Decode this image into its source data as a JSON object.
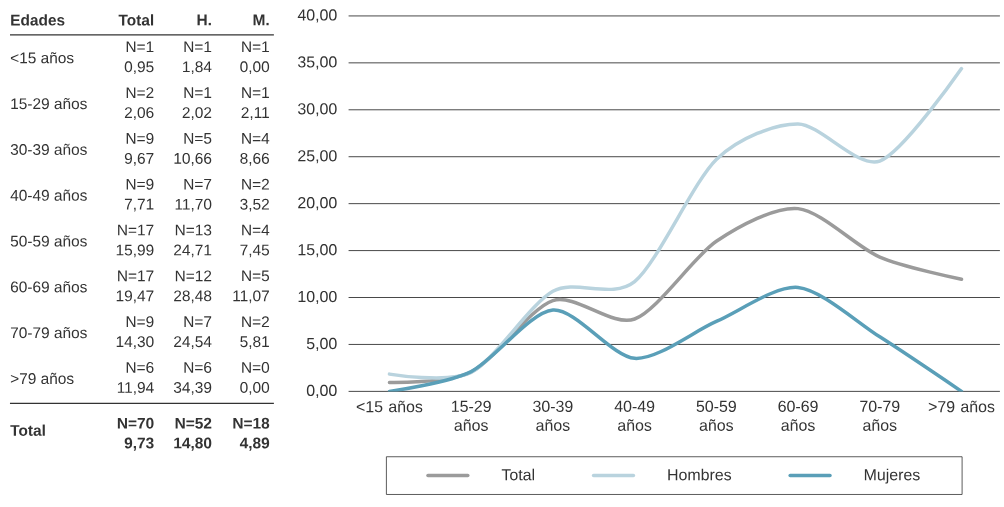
{
  "chart_data": {
    "type": "line",
    "categories": [
      "<15 años",
      "15-29 años",
      "30-39 años",
      "40-49 años",
      "50-59 años",
      "60-69 años",
      "70-79 años",
      ">79 años"
    ],
    "series": [
      {
        "name": "Total",
        "color": "#9b9b9b",
        "values": [
          0.95,
          2.06,
          9.67,
          7.71,
          15.99,
          19.47,
          14.3,
          11.94
        ]
      },
      {
        "name": "Hombres",
        "color": "#b9d3de",
        "values": [
          1.84,
          2.02,
          10.66,
          11.7,
          24.71,
          28.48,
          24.54,
          34.39
        ]
      },
      {
        "name": "Mujeres",
        "color": "#5a9fb8",
        "values": [
          0.0,
          2.11,
          8.66,
          3.52,
          7.45,
          11.07,
          5.81,
          0.0
        ]
      }
    ],
    "ylim": [
      0,
      40
    ],
    "yticks": [
      {
        "value": 0,
        "label": "0,00"
      },
      {
        "value": 5,
        "label": "5,00"
      },
      {
        "value": 10,
        "label": "10,00"
      },
      {
        "value": 15,
        "label": "15,00"
      },
      {
        "value": 20,
        "label": "20,00"
      },
      {
        "value": 25,
        "label": "25,00"
      },
      {
        "value": 30,
        "label": "30,00"
      },
      {
        "value": 35,
        "label": "35,00"
      },
      {
        "value": 40,
        "label": "40,00"
      }
    ],
    "grid": "y",
    "legend": "bottom",
    "annotations": [
      "Edades",
      "Total",
      "H.",
      "M.",
      "N=1",
      "N=1",
      "N=1",
      "0,95",
      "1,84",
      "0,00",
      "N=2",
      "N=1",
      "N=1",
      "2,06",
      "2,02",
      "2,11",
      "N=9",
      "N=5",
      "N=4",
      "9,67",
      "10,66",
      "8,66",
      "N=9",
      "N=7",
      "N=2",
      "7,71",
      "11,70",
      "3,52",
      "N=17",
      "N=13",
      "N=4",
      "15,99",
      "24,71",
      "7,45",
      "N=17",
      "N=12",
      "N=5",
      "19,47",
      "28,48",
      "11,07",
      "N=9",
      "N=7",
      "N=2",
      "14,30",
      "24,54",
      "5,81",
      "N=6",
      "N=6",
      "N=0",
      "11,94",
      "34,39",
      "0,00",
      "Total",
      "N=70",
      "N=52",
      "N=18",
      "9,73",
      "14,80",
      "4,89"
    ]
  }
}
